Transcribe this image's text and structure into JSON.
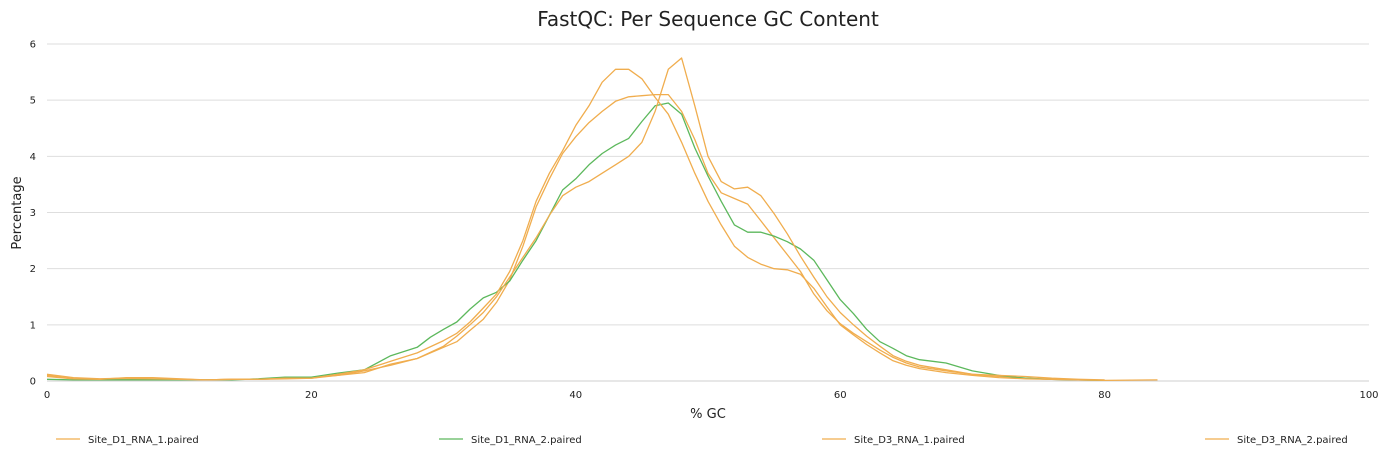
{
  "chart_data": {
    "type": "line",
    "title": "FastQC: Per Sequence GC Content",
    "xlabel": "% GC",
    "ylabel": "Percentage",
    "xlim": [
      0,
      100
    ],
    "ylim": [
      0,
      6
    ],
    "x_ticks": [
      "0",
      "20",
      "40",
      "60",
      "80",
      "100"
    ],
    "y_ticks": [
      "0",
      "1",
      "2",
      "3",
      "4",
      "5",
      "6"
    ],
    "grid": "horizontal",
    "legend_position": "bottom",
    "series": [
      {
        "name": "Site_D1_RNA_1.paired",
        "color": "#f0ad4e",
        "x": [
          0,
          2,
          4,
          6,
          8,
          10,
          12,
          14,
          16,
          18,
          20,
          22,
          24,
          26,
          28,
          30,
          31,
          32,
          33,
          34,
          35,
          36,
          37,
          38,
          39,
          40,
          41,
          42,
          43,
          44,
          45,
          46,
          47,
          48,
          49,
          50,
          51,
          52,
          53,
          54,
          55,
          56,
          57,
          58,
          59,
          60,
          61,
          62,
          63,
          64,
          65,
          66,
          68,
          70,
          72,
          74,
          76,
          78,
          80
        ],
        "y": [
          0.1,
          0.04,
          0.03,
          0.03,
          0.03,
          0.03,
          0.02,
          0.03,
          0.03,
          0.05,
          0.06,
          0.1,
          0.15,
          0.3,
          0.4,
          0.6,
          0.7,
          0.9,
          1.1,
          1.4,
          1.8,
          2.4,
          3.1,
          3.6,
          4.05,
          4.35,
          4.6,
          4.8,
          4.98,
          5.06,
          5.08,
          5.1,
          5.1,
          4.8,
          4.3,
          3.7,
          3.35,
          3.25,
          3.15,
          2.85,
          2.55,
          2.25,
          1.95,
          1.55,
          1.25,
          1.02,
          0.85,
          0.7,
          0.55,
          0.42,
          0.32,
          0.25,
          0.18,
          0.12,
          0.08,
          0.05,
          0.03,
          0.02,
          0.01
        ]
      },
      {
        "name": "Site_D1_RNA_2.paired",
        "color": "#5cb85c",
        "x": [
          0,
          2,
          4,
          6,
          8,
          10,
          12,
          14,
          16,
          18,
          20,
          22,
          24,
          26,
          28,
          29,
          30,
          31,
          32,
          33,
          34,
          35,
          36,
          37,
          38,
          39,
          40,
          41,
          42,
          43,
          44,
          45,
          46,
          47,
          48,
          49,
          50,
          51,
          52,
          53,
          54,
          55,
          56,
          57,
          58,
          59,
          60,
          61,
          62,
          63,
          64,
          65,
          66,
          67,
          68,
          70,
          72,
          74,
          76,
          78,
          80
        ],
        "y": [
          0.03,
          0.02,
          0.02,
          0.02,
          0.02,
          0.02,
          0.02,
          0.02,
          0.04,
          0.07,
          0.07,
          0.14,
          0.2,
          0.45,
          0.6,
          0.78,
          0.92,
          1.05,
          1.28,
          1.48,
          1.58,
          1.78,
          2.15,
          2.5,
          2.95,
          3.4,
          3.6,
          3.85,
          4.05,
          4.2,
          4.32,
          4.62,
          4.9,
          4.95,
          4.75,
          4.15,
          3.65,
          3.2,
          2.78,
          2.65,
          2.65,
          2.58,
          2.48,
          2.35,
          2.15,
          1.8,
          1.45,
          1.2,
          0.92,
          0.7,
          0.58,
          0.45,
          0.38,
          0.35,
          0.32,
          0.18,
          0.1,
          0.05,
          0.03,
          0.02,
          0.01
        ]
      },
      {
        "name": "Site_D3_RNA_1.paired",
        "color": "#f0ad4e",
        "x": [
          0,
          2,
          4,
          6,
          8,
          10,
          12,
          14,
          16,
          18,
          20,
          22,
          24,
          26,
          28,
          30,
          31,
          32,
          33,
          34,
          35,
          36,
          37,
          38,
          39,
          40,
          41,
          42,
          43,
          44,
          45,
          46,
          47,
          48,
          49,
          50,
          51,
          52,
          53,
          54,
          55,
          56,
          57,
          58,
          59,
          60,
          61,
          62,
          63,
          64,
          65,
          66,
          68,
          70,
          72,
          74,
          76,
          78,
          80
        ],
        "y": [
          0.08,
          0.04,
          0.03,
          0.06,
          0.06,
          0.04,
          0.02,
          0.03,
          0.03,
          0.04,
          0.05,
          0.1,
          0.18,
          0.28,
          0.4,
          0.62,
          0.8,
          1.0,
          1.22,
          1.5,
          1.85,
          2.2,
          2.55,
          2.95,
          3.3,
          3.45,
          3.55,
          3.7,
          3.85,
          4.0,
          4.25,
          4.8,
          5.55,
          5.75,
          4.9,
          4.0,
          3.55,
          3.42,
          3.45,
          3.3,
          2.98,
          2.62,
          2.22,
          1.85,
          1.5,
          1.22,
          1.0,
          0.8,
          0.62,
          0.45,
          0.35,
          0.28,
          0.2,
          0.12,
          0.1,
          0.08,
          0.05,
          0.03,
          0.02
        ]
      },
      {
        "name": "Site_D3_RNA_2.paired",
        "color": "#f0ad4e",
        "x": [
          0,
          2,
          4,
          6,
          8,
          10,
          12,
          14,
          16,
          18,
          20,
          22,
          24,
          26,
          28,
          30,
          31,
          32,
          33,
          34,
          35,
          36,
          37,
          38,
          39,
          40,
          41,
          42,
          43,
          44,
          45,
          46,
          47,
          48,
          49,
          50,
          51,
          52,
          53,
          54,
          55,
          56,
          57,
          58,
          59,
          60,
          61,
          62,
          63,
          64,
          65,
          66,
          68,
          70,
          72,
          74,
          76,
          78,
          80,
          84
        ],
        "y": [
          0.12,
          0.06,
          0.04,
          0.05,
          0.04,
          0.03,
          0.02,
          0.03,
          0.03,
          0.05,
          0.05,
          0.12,
          0.2,
          0.35,
          0.5,
          0.72,
          0.85,
          1.05,
          1.3,
          1.55,
          1.95,
          2.5,
          3.2,
          3.7,
          4.1,
          4.55,
          4.9,
          5.32,
          5.55,
          5.55,
          5.38,
          5.05,
          4.75,
          4.25,
          3.7,
          3.2,
          2.78,
          2.4,
          2.2,
          2.08,
          2.0,
          1.98,
          1.9,
          1.65,
          1.32,
          1.0,
          0.82,
          0.65,
          0.5,
          0.36,
          0.28,
          0.22,
          0.15,
          0.1,
          0.06,
          0.04,
          0.03,
          0.02,
          0.01,
          0.02
        ]
      }
    ]
  }
}
